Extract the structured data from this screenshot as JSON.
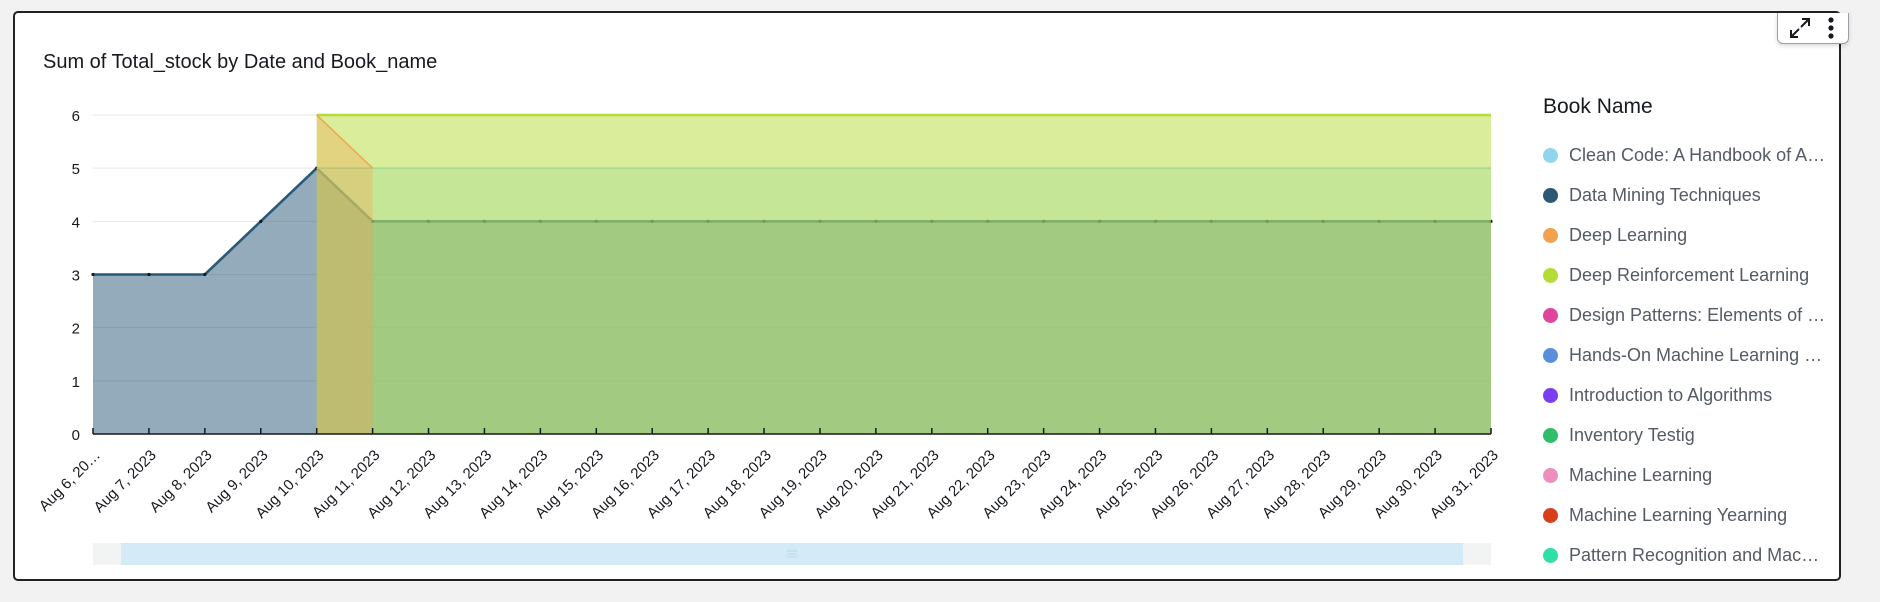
{
  "title": "Sum of Total_stock by Date and Book_name",
  "legend": {
    "title": "Book Name",
    "items": [
      {
        "label": "Clean Code: A Handbook of A…",
        "color": "#8fd5ee"
      },
      {
        "label": "Data Mining Techniques",
        "color": "#2a5877"
      },
      {
        "label": "Deep Learning",
        "color": "#f2a24f"
      },
      {
        "label": "Deep Reinforcement Learning",
        "color": "#b4dc36"
      },
      {
        "label": "Design Patterns: Elements of …",
        "color": "#e0479c"
      },
      {
        "label": "Hands-On Machine Learning …",
        "color": "#5a8fdc"
      },
      {
        "label": "Introduction to Algorithms",
        "color": "#7a3ff0"
      },
      {
        "label": "Inventory Testig",
        "color": "#2fbf6a"
      },
      {
        "label": "Machine Learning",
        "color": "#ec8fbf"
      },
      {
        "label": "Machine Learning Yearning",
        "color": "#d8401c"
      },
      {
        "label": "Pattern Recognition and Mac…",
        "color": "#2ee0a8"
      }
    ]
  },
  "chart_data": {
    "type": "area",
    "title": "Sum of Total_stock by Date and Book_name",
    "xlabel": "",
    "ylabel": "",
    "ylim": [
      0,
      6
    ],
    "yticks": [
      "0",
      "1",
      "2",
      "3",
      "4",
      "5",
      "6"
    ],
    "grid": "horizontal",
    "legend_position": "right",
    "categories": [
      "Aug 6, 20…",
      "Aug 7, 2023",
      "Aug 8, 2023",
      "Aug 9, 2023",
      "Aug 10, 2023",
      "Aug 11, 2023",
      "Aug 12, 2023",
      "Aug 13, 2023",
      "Aug 14, 2023",
      "Aug 15, 2023",
      "Aug 16, 2023",
      "Aug 17, 2023",
      "Aug 18, 2023",
      "Aug 19, 2023",
      "Aug 20, 2023",
      "Aug 21, 2023",
      "Aug 22, 2023",
      "Aug 23, 2023",
      "Aug 24, 2023",
      "Aug 25, 2023",
      "Aug 26, 2023",
      "Aug 27, 2023",
      "Aug 28, 2023",
      "Aug 29, 2023",
      "Aug 30, 2023",
      "Aug 31, 2023"
    ],
    "series": [
      {
        "name": "Data Mining Techniques",
        "color": "#2a5877",
        "values": [
          3,
          3,
          3,
          4,
          5,
          4,
          4,
          4,
          4,
          4,
          4,
          4,
          4,
          4,
          4,
          4,
          4,
          4,
          4,
          4,
          4,
          4,
          4,
          4,
          4,
          4
        ]
      },
      {
        "name": "Clean Code: A Handbook of A…",
        "color": "#8fd5ee",
        "values": [
          null,
          null,
          null,
          null,
          5,
          5,
          5,
          5,
          5,
          5,
          5,
          5,
          5,
          5,
          5,
          5,
          5,
          5,
          5,
          5,
          5,
          5,
          5,
          5,
          5,
          5
        ]
      },
      {
        "name": "Deep Reinforcement Learning",
        "color": "#b4dc36",
        "values": [
          null,
          null,
          null,
          null,
          6,
          6,
          6,
          6,
          6,
          6,
          6,
          6,
          6,
          6,
          6,
          6,
          6,
          6,
          6,
          6,
          6,
          6,
          6,
          6,
          6,
          6
        ]
      },
      {
        "name": "Deep Learning",
        "color": "#f2a24f",
        "values": [
          null,
          null,
          null,
          null,
          6,
          5,
          null,
          null,
          null,
          null,
          null,
          null,
          null,
          null,
          null,
          null,
          null,
          null,
          null,
          null,
          null,
          null,
          null,
          null,
          null,
          null
        ]
      }
    ]
  },
  "toolbar": {
    "expand_icon": "expand-icon",
    "menu_icon": "more-vertical-icon"
  },
  "scrollbar": {
    "start": 0.02,
    "end": 0.98
  }
}
